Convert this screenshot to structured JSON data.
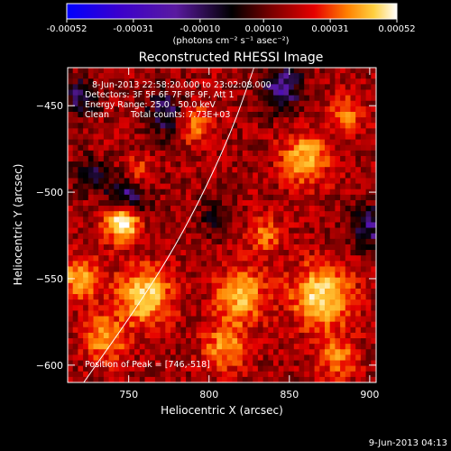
{
  "chart_data": {
    "type": "heatmap",
    "title": "Reconstructed RHESSI Image",
    "xlabel": "Heliocentric X (arcsec)",
    "ylabel": "Heliocentric Y (arcsec)",
    "xlim": [
      712,
      904
    ],
    "ylim": [
      -610,
      -428
    ],
    "xticks": [
      750,
      800,
      850,
      900
    ],
    "yticks": [
      -450,
      -500,
      -550,
      -600
    ],
    "colorbar": {
      "min": -0.00052,
      "max": 0.00052,
      "ticks": [
        -0.00052,
        -0.00031,
        -0.0001,
        0.0001,
        0.00031,
        0.00052
      ],
      "tick_labels": [
        "-0.00052",
        "-0.00031",
        "-0.00010",
        "0.00010",
        "0.00031",
        "0.00052"
      ],
      "unit_label": "(photons cm⁻² s⁻¹ asec⁻²)",
      "colormap": [
        "#0000ff",
        "#3b00cc",
        "#5a1aa0",
        "#000000",
        "#7a0000",
        "#e60000",
        "#ff8000",
        "#ffd040",
        "#ffffff"
      ]
    },
    "annotations": {
      "time_range": "8-Jun-2013 22:58:20.000 to 23:02:08.000",
      "detectors": "Detectors: 3F 5F 6F 7F 8F 9F, Att 1",
      "energy_range": "Energy Range: 25.0 - 50.0 keV",
      "method": "Clean",
      "total_counts": "Total counts: 7.73E+03",
      "peak": "Position of Peak = [746,-518]"
    },
    "peak": {
      "x": 746,
      "y": -518
    },
    "limb": {
      "description": "solar limb arc",
      "points": [
        [
          722,
          -610
        ],
        [
          760,
          -560
        ],
        [
          786,
          -520
        ],
        [
          812,
          -470
        ],
        [
          828,
          -428
        ]
      ]
    },
    "sources": [
      {
        "x": 746,
        "y": -518,
        "amp": 1.0,
        "sigma": 7
      },
      {
        "x": 790,
        "y": -460,
        "amp": 0.55,
        "sigma": 8
      },
      {
        "x": 755,
        "y": -490,
        "amp": 0.45,
        "sigma": 7
      },
      {
        "x": 860,
        "y": -480,
        "amp": 0.6,
        "sigma": 10
      },
      {
        "x": 885,
        "y": -455,
        "amp": 0.45,
        "sigma": 7
      },
      {
        "x": 870,
        "y": -560,
        "amp": 0.8,
        "sigma": 12
      },
      {
        "x": 820,
        "y": -560,
        "amp": 0.6,
        "sigma": 11
      },
      {
        "x": 760,
        "y": -560,
        "amp": 0.75,
        "sigma": 11
      },
      {
        "x": 720,
        "y": -550,
        "amp": 0.55,
        "sigma": 9
      },
      {
        "x": 735,
        "y": -585,
        "amp": 0.55,
        "sigma": 9
      },
      {
        "x": 810,
        "y": -590,
        "amp": 0.5,
        "sigma": 9
      },
      {
        "x": 880,
        "y": -595,
        "amp": 0.45,
        "sigma": 8
      },
      {
        "x": 835,
        "y": -525,
        "amp": 0.4,
        "sigma": 7
      },
      {
        "x": 775,
        "y": -455,
        "amp": -0.5,
        "sigma": 10
      },
      {
        "x": 750,
        "y": -500,
        "amp": -0.6,
        "sigma": 9
      },
      {
        "x": 845,
        "y": -440,
        "amp": -0.55,
        "sigma": 10
      },
      {
        "x": 900,
        "y": -520,
        "amp": -0.5,
        "sigma": 9
      },
      {
        "x": 720,
        "y": -445,
        "amp": -0.45,
        "sigma": 8
      },
      {
        "x": 725,
        "y": -490,
        "amp": -0.4,
        "sigma": 7
      },
      {
        "x": 805,
        "y": -515,
        "amp": -0.35,
        "sigma": 7
      }
    ]
  },
  "footer": {
    "timestamp": "9-Jun-2013 04:13"
  }
}
